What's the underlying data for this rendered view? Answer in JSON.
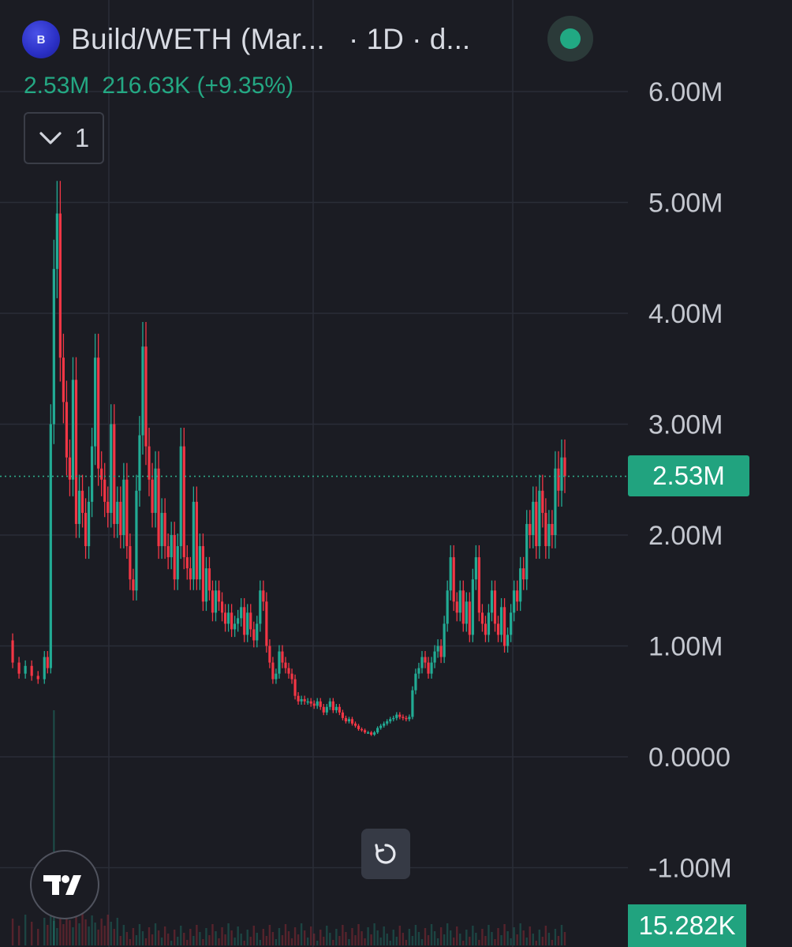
{
  "header": {
    "logo_text": "B",
    "pair_title": "Build/WETH (Mar...",
    "interval": "· 1D · d..."
  },
  "legend": {
    "price": "2.53M",
    "change": "216.63K (+9.35%)",
    "indicator_count": "1"
  },
  "colors": {
    "background": "#1b1c23",
    "up": "#22ab94",
    "down": "#f23645",
    "grid": "#2a2d37",
    "axis_text": "#c4c7cf",
    "accent": "#21a37f"
  },
  "icons": {
    "token_logo": "build-token-icon",
    "status": "live-status-icon",
    "collapse": "chevron-down-icon",
    "reset": "reset-icon",
    "brand": "tradingview-logo"
  },
  "current_price_label": "2.53M",
  "volume_label": "15.282K",
  "chart_data": {
    "type": "candlestick",
    "y_axis_labels": [
      "6.00M",
      "5.00M",
      "4.00M",
      "3.00M",
      "2.00M",
      "1.00M",
      "0.0000",
      "-1.00M"
    ],
    "y_axis_values": [
      6000000,
      5000000,
      4000000,
      3000000,
      2000000,
      1000000,
      0,
      -1000000
    ],
    "ylim": [
      -1400000,
      6300000
    ],
    "current_price": 2530000,
    "grid": true,
    "series": [
      {
        "name": "price_path",
        "values": [
          [
            0,
            1.05
          ],
          [
            2,
            0.85
          ],
          [
            4,
            0.75
          ],
          [
            6,
            0.82
          ],
          [
            8,
            0.73
          ],
          [
            10,
            0.7
          ],
          [
            12,
            0.9
          ],
          [
            13,
            0.8
          ],
          [
            14,
            3.0
          ],
          [
            15,
            4.4
          ],
          [
            16,
            4.9
          ],
          [
            17,
            3.6
          ],
          [
            18,
            3.2
          ],
          [
            19,
            2.7
          ],
          [
            20,
            2.5
          ],
          [
            21,
            3.4
          ],
          [
            22,
            2.1
          ],
          [
            23,
            2.4
          ],
          [
            24,
            2.2
          ],
          [
            25,
            1.9
          ],
          [
            26,
            2.3
          ],
          [
            27,
            2.8
          ],
          [
            28,
            3.6
          ],
          [
            29,
            2.6
          ],
          [
            30,
            2.5
          ],
          [
            31,
            2.3
          ],
          [
            32,
            2.2
          ],
          [
            33,
            3.0
          ],
          [
            34,
            2.1
          ],
          [
            35,
            2.3
          ],
          [
            36,
            2.0
          ],
          [
            37,
            2.5
          ],
          [
            38,
            1.9
          ],
          [
            39,
            1.6
          ],
          [
            40,
            1.5
          ],
          [
            41,
            2.4
          ],
          [
            42,
            2.9
          ],
          [
            43,
            3.7
          ],
          [
            44,
            2.8
          ],
          [
            45,
            2.5
          ],
          [
            46,
            2.2
          ],
          [
            47,
            2.6
          ],
          [
            48,
            1.9
          ],
          [
            49,
            2.2
          ],
          [
            50,
            1.9
          ],
          [
            51,
            1.8
          ],
          [
            52,
            2.0
          ],
          [
            53,
            1.6
          ],
          [
            54,
            1.9
          ],
          [
            55,
            2.8
          ],
          [
            56,
            1.8
          ],
          [
            57,
            1.7
          ],
          [
            58,
            1.6
          ],
          [
            59,
            2.3
          ],
          [
            60,
            1.6
          ],
          [
            61,
            1.9
          ],
          [
            62,
            1.4
          ],
          [
            63,
            1.7
          ],
          [
            64,
            1.5
          ],
          [
            65,
            1.3
          ],
          [
            66,
            1.5
          ],
          [
            67,
            1.4
          ],
          [
            68,
            1.3
          ],
          [
            69,
            1.2
          ],
          [
            70,
            1.3
          ],
          [
            71,
            1.15
          ],
          [
            72,
            1.2
          ],
          [
            73,
            1.25
          ],
          [
            74,
            1.35
          ],
          [
            75,
            1.1
          ],
          [
            76,
            1.3
          ],
          [
            77,
            1.15
          ],
          [
            78,
            1.05
          ],
          [
            79,
            1.2
          ],
          [
            80,
            1.5
          ],
          [
            81,
            1.4
          ],
          [
            82,
            1.0
          ],
          [
            83,
            0.85
          ],
          [
            84,
            0.7
          ],
          [
            85,
            0.75
          ],
          [
            86,
            0.95
          ],
          [
            87,
            0.85
          ],
          [
            88,
            0.8
          ],
          [
            89,
            0.75
          ],
          [
            90,
            0.7
          ],
          [
            91,
            0.55
          ],
          [
            92,
            0.5
          ],
          [
            93,
            0.52
          ],
          [
            94,
            0.5
          ],
          [
            95,
            0.5
          ],
          [
            96,
            0.48
          ],
          [
            97,
            0.46
          ],
          [
            98,
            0.5
          ],
          [
            99,
            0.45
          ],
          [
            100,
            0.4
          ],
          [
            101,
            0.45
          ],
          [
            102,
            0.5
          ],
          [
            103,
            0.42
          ],
          [
            104,
            0.45
          ],
          [
            105,
            0.4
          ],
          [
            106,
            0.35
          ],
          [
            107,
            0.32
          ],
          [
            108,
            0.34
          ],
          [
            109,
            0.3
          ],
          [
            110,
            0.28
          ],
          [
            111,
            0.25
          ],
          [
            112,
            0.24
          ],
          [
            113,
            0.22
          ],
          [
            114,
            0.22
          ],
          [
            115,
            0.2
          ],
          [
            116,
            0.22
          ],
          [
            117,
            0.26
          ],
          [
            118,
            0.28
          ],
          [
            119,
            0.3
          ],
          [
            120,
            0.32
          ],
          [
            121,
            0.34
          ],
          [
            122,
            0.35
          ],
          [
            123,
            0.38
          ],
          [
            124,
            0.36
          ],
          [
            125,
            0.35
          ],
          [
            126,
            0.34
          ],
          [
            127,
            0.36
          ],
          [
            128,
            0.6
          ],
          [
            129,
            0.75
          ],
          [
            130,
            0.8
          ],
          [
            131,
            0.9
          ],
          [
            132,
            0.85
          ],
          [
            133,
            0.75
          ],
          [
            134,
            0.85
          ],
          [
            135,
            0.95
          ],
          [
            136,
            1.0
          ],
          [
            137,
            0.9
          ],
          [
            138,
            1.2
          ],
          [
            139,
            1.5
          ],
          [
            140,
            1.8
          ],
          [
            141,
            1.4
          ],
          [
            142,
            1.3
          ],
          [
            143,
            1.5
          ],
          [
            144,
            1.2
          ],
          [
            145,
            1.4
          ],
          [
            146,
            1.1
          ],
          [
            147,
            1.6
          ],
          [
            148,
            1.8
          ],
          [
            149,
            1.3
          ],
          [
            150,
            1.2
          ],
          [
            151,
            1.1
          ],
          [
            152,
            1.3
          ],
          [
            153,
            1.5
          ],
          [
            154,
            1.2
          ],
          [
            155,
            1.1
          ],
          [
            156,
            1.35
          ],
          [
            157,
            1.0
          ],
          [
            158,
            1.1
          ],
          [
            159,
            1.3
          ],
          [
            160,
            1.5
          ],
          [
            161,
            1.4
          ],
          [
            162,
            1.7
          ],
          [
            163,
            1.6
          ],
          [
            164,
            2.1
          ],
          [
            165,
            2.0
          ],
          [
            166,
            2.3
          ],
          [
            167,
            1.9
          ],
          [
            168,
            2.4
          ],
          [
            169,
            2.2
          ],
          [
            170,
            1.9
          ],
          [
            171,
            2.1
          ],
          [
            172,
            2.0
          ],
          [
            173,
            2.6
          ],
          [
            174,
            2.4
          ],
          [
            175,
            2.7
          ],
          [
            176,
            2.53
          ]
        ]
      }
    ]
  }
}
